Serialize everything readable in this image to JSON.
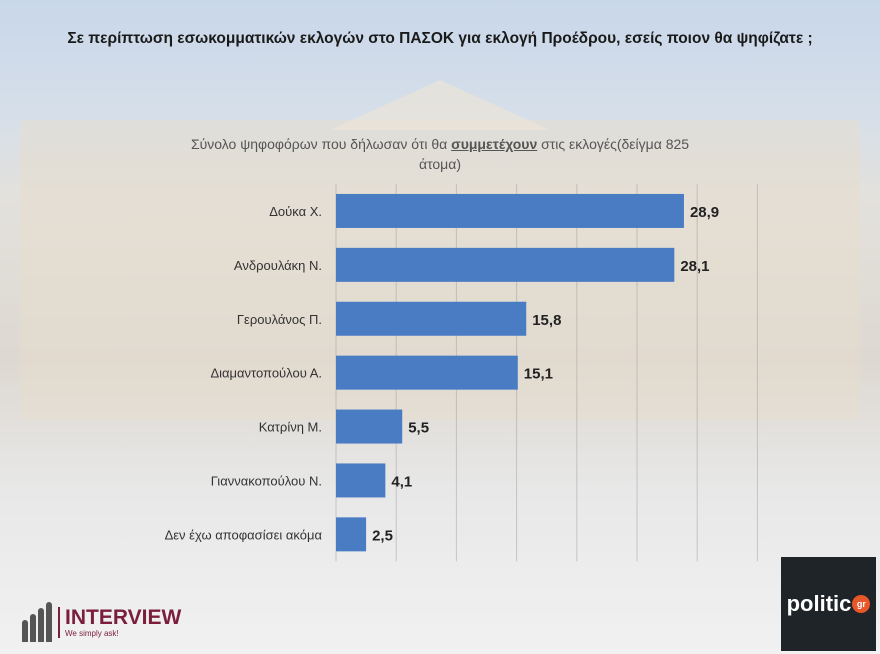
{
  "chart_data": {
    "type": "bar",
    "orientation": "horizontal",
    "title": "Σε περίπτωση εσωκομματικών εκλογών στο ΠΑΣΟΚ για εκλογή Προέδρου, εσείς ποιον θα ψηφίζατε ;",
    "subtitle_before": "Σύνολο ψηφοφόρων που δήλωσαν ότι θα ",
    "subtitle_underlined": "συμμετέχουν",
    "subtitle_after": " στις εκλογές(δείγμα 825 άτομα)",
    "categories": [
      "Δούκα Χ.",
      "Ανδρουλάκη Ν.",
      "Γερουλάνος Π.",
      "Διαμαντοπούλου Α.",
      "Κατρίνη Μ.",
      "Γιαννακοπούλου Ν.",
      "Δεν έχω αποφασίσει ακόμα"
    ],
    "values": [
      28.9,
      28.1,
      15.8,
      15.1,
      5.5,
      4.1,
      2.5
    ],
    "data_labels": [
      "28,9",
      "28,1",
      "15,8",
      "15,1",
      "5,5",
      "4,1",
      "2,5"
    ],
    "xlim": [
      0,
      35
    ],
    "grid": true,
    "bar_color": "#4a7cc4"
  },
  "logos": {
    "interview": "INTERVIEW",
    "interview_tagline": "We simply ask!",
    "politic": "politic",
    "politic_suffix": "gr"
  }
}
